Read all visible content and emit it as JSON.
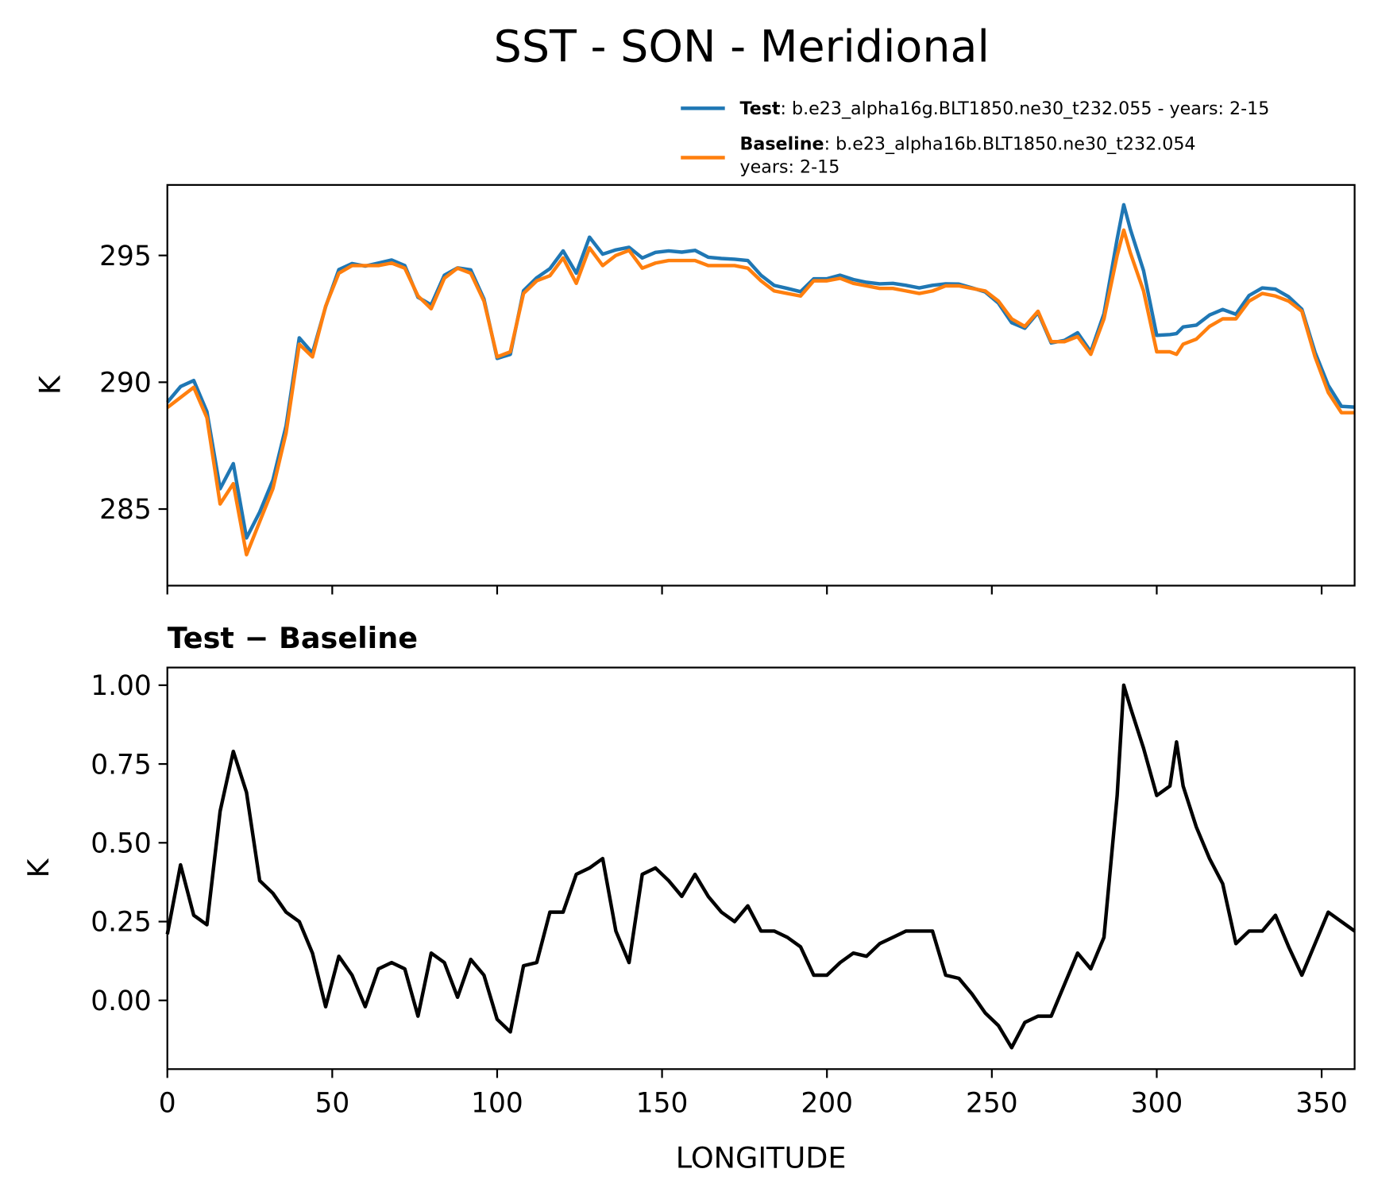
{
  "chart_data": [
    {
      "type": "line",
      "title": "SST - SON - Meridional",
      "ylabel": "K",
      "x": [
        0,
        4,
        8,
        12,
        16,
        20,
        24,
        28,
        32,
        36,
        40,
        44,
        48,
        52,
        56,
        60,
        64,
        68,
        72,
        76,
        80,
        84,
        88,
        92,
        96,
        100,
        104,
        108,
        112,
        116,
        120,
        124,
        128,
        132,
        136,
        140,
        144,
        148,
        152,
        156,
        160,
        164,
        168,
        172,
        176,
        180,
        184,
        188,
        192,
        196,
        200,
        204,
        208,
        212,
        216,
        220,
        224,
        228,
        232,
        236,
        240,
        244,
        248,
        252,
        256,
        260,
        264,
        268,
        272,
        276,
        280,
        284,
        288,
        290,
        292,
        296,
        300,
        304,
        306,
        308,
        312,
        316,
        320,
        324,
        328,
        332,
        336,
        340,
        344,
        348,
        352,
        356,
        360
      ],
      "xlim": [
        0,
        360
      ],
      "ylim": [
        281.98,
        297.78
      ],
      "yticks": [
        285,
        290,
        295
      ],
      "series": [
        {
          "name": "Test",
          "description": [
            ": b.e23_alpha16g.BLT1850.ne30_t232.055 - years: 2-15"
          ],
          "color": "#1f77b4",
          "values": [
            289.21,
            289.83,
            290.07,
            288.84,
            285.8,
            286.79,
            283.86,
            284.88,
            286.14,
            288.28,
            291.75,
            291.15,
            292.98,
            294.44,
            294.68,
            294.58,
            294.7,
            294.82,
            294.6,
            293.35,
            293.05,
            294.22,
            294.51,
            294.43,
            293.28,
            290.94,
            291.1,
            293.61,
            294.12,
            294.48,
            295.18,
            294.3,
            295.72,
            295.05,
            295.22,
            295.32,
            294.9,
            295.12,
            295.18,
            295.13,
            295.2,
            294.93,
            294.88,
            294.85,
            294.8,
            294.22,
            293.82,
            293.7,
            293.57,
            294.08,
            294.08,
            294.22,
            294.05,
            293.94,
            293.88,
            293.9,
            293.82,
            293.72,
            293.82,
            293.88,
            293.87,
            293.72,
            293.56,
            293.12,
            292.35,
            292.13,
            292.75,
            291.55,
            291.65,
            291.95,
            291.2,
            292.7,
            295.65,
            297.0,
            296.03,
            294.4,
            291.85,
            291.88,
            291.92,
            292.18,
            292.25,
            292.65,
            292.87,
            292.68,
            293.42,
            293.72,
            293.67,
            293.37,
            292.88,
            291.18,
            289.88,
            289.05,
            289.02
          ]
        },
        {
          "name": "Baseline",
          "description": [
            ": b.e23_alpha16b.BLT1850.ne30_t232.054",
            "years: 2-15"
          ],
          "color": "#ff7f0e",
          "values": [
            289.0,
            289.4,
            289.8,
            288.6,
            285.2,
            286.0,
            283.2,
            284.5,
            285.8,
            288.0,
            291.5,
            291.0,
            293.0,
            294.3,
            294.6,
            294.6,
            294.6,
            294.7,
            294.5,
            293.4,
            292.9,
            294.1,
            294.5,
            294.3,
            293.2,
            291.0,
            291.2,
            293.5,
            294.0,
            294.2,
            294.9,
            293.9,
            295.3,
            294.6,
            295.0,
            295.2,
            294.5,
            294.7,
            294.8,
            294.8,
            294.8,
            294.6,
            294.6,
            294.6,
            294.5,
            294.0,
            293.6,
            293.5,
            293.4,
            294.0,
            294.0,
            294.1,
            293.9,
            293.8,
            293.7,
            293.7,
            293.6,
            293.5,
            293.6,
            293.8,
            293.8,
            293.7,
            293.6,
            293.2,
            292.5,
            292.2,
            292.8,
            291.6,
            291.6,
            291.8,
            291.1,
            292.5,
            295.0,
            296.0,
            295.1,
            293.6,
            291.2,
            291.2,
            291.1,
            291.5,
            291.7,
            292.2,
            292.5,
            292.5,
            293.2,
            293.5,
            293.4,
            293.2,
            292.8,
            291.0,
            289.6,
            288.8,
            288.8
          ]
        }
      ]
    },
    {
      "type": "line",
      "title": "Test − Baseline",
      "ylabel": "K",
      "xlabel": "LONGITUDE",
      "x": [
        0,
        4,
        8,
        12,
        16,
        20,
        24,
        28,
        32,
        36,
        40,
        44,
        48,
        52,
        56,
        60,
        64,
        68,
        72,
        76,
        80,
        84,
        88,
        92,
        96,
        100,
        104,
        108,
        112,
        116,
        120,
        124,
        128,
        132,
        136,
        140,
        144,
        148,
        152,
        156,
        160,
        164,
        168,
        172,
        176,
        180,
        184,
        188,
        192,
        196,
        200,
        204,
        208,
        212,
        216,
        220,
        224,
        228,
        232,
        236,
        240,
        244,
        248,
        252,
        256,
        260,
        264,
        268,
        272,
        276,
        280,
        284,
        288,
        290,
        292,
        296,
        300,
        304,
        306,
        308,
        312,
        316,
        320,
        324,
        328,
        332,
        336,
        340,
        344,
        348,
        352,
        356,
        360
      ],
      "xlim": [
        0,
        360
      ],
      "ylim": [
        -0.218,
        1.056
      ],
      "xticks": [
        0,
        50,
        100,
        150,
        200,
        250,
        300,
        350
      ],
      "yticks": [
        {
          "value": 0,
          "label": "0.00"
        },
        0.25,
        {
          "value": 0.5,
          "label": "0.50"
        },
        0.75,
        {
          "value": 1,
          "label": "1.00"
        }
      ],
      "series": [
        {
          "name": "Test − Baseline",
          "color": "#000000",
          "values": [
            0.21,
            0.43,
            0.27,
            0.24,
            0.6,
            0.79,
            0.66,
            0.38,
            0.34,
            0.28,
            0.25,
            0.15,
            -0.02,
            0.14,
            0.08,
            -0.02,
            0.1,
            0.12,
            0.1,
            -0.05,
            0.15,
            0.12,
            0.01,
            0.13,
            0.08,
            -0.06,
            -0.1,
            0.11,
            0.12,
            0.28,
            0.28,
            0.4,
            0.42,
            0.45,
            0.22,
            0.12,
            0.4,
            0.42,
            0.38,
            0.33,
            0.4,
            0.33,
            0.28,
            0.25,
            0.3,
            0.22,
            0.22,
            0.2,
            0.17,
            0.08,
            0.08,
            0.12,
            0.15,
            0.14,
            0.18,
            0.2,
            0.22,
            0.22,
            0.22,
            0.08,
            0.07,
            0.02,
            -0.04,
            -0.08,
            -0.15,
            -0.07,
            -0.05,
            -0.05,
            0.05,
            0.15,
            0.1,
            0.2,
            0.65,
            1.0,
            0.93,
            0.8,
            0.65,
            0.68,
            0.82,
            0.68,
            0.55,
            0.45,
            0.37,
            0.18,
            0.22,
            0.22,
            0.27,
            0.17,
            0.08,
            0.18,
            0.28,
            0.25,
            0.22
          ]
        }
      ]
    }
  ]
}
